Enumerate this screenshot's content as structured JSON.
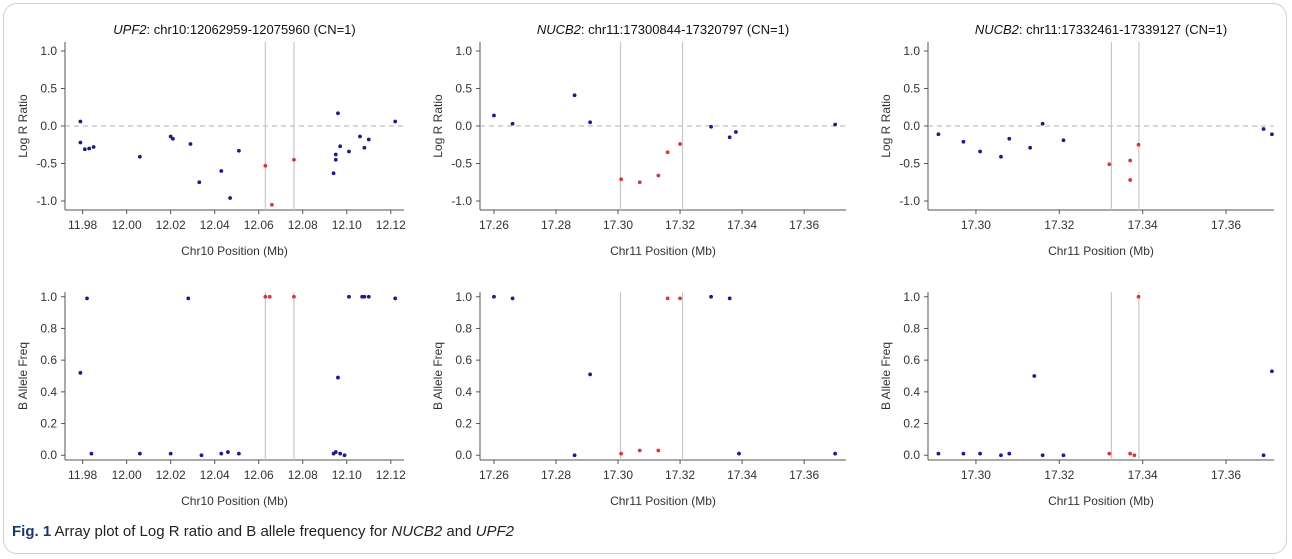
{
  "caption": {
    "label": "Fig. 1",
    "text_1": " Array plot of Log R ratio and B allele frequency for ",
    "gene_1": "NUCB2",
    "text_2": " and ",
    "gene_2": "UPF2"
  },
  "colors": {
    "normal": "#1c1c8c",
    "cnv": "#d43a3a",
    "boundary": "#c8c8c8",
    "baseline": "#b0b0b0",
    "axis": "#555555",
    "text": "#333333"
  },
  "chart_data": [
    {
      "type": "scatter",
      "title_gene": "UPF2",
      "title_rest": ": chr10:12062959-12075960 (CN=1)",
      "xlabel": "Chr10 Position (Mb)",
      "ylabel": "Log R Ratio",
      "xlim": [
        11.972,
        12.126
      ],
      "ylim": [
        -1.12,
        1.12
      ],
      "xticks": [
        "11.98",
        "12.00",
        "12.02",
        "12.04",
        "12.06",
        "12.08",
        "12.10",
        "12.12"
      ],
      "yticks": [
        "1.0",
        "0.5",
        "0.0",
        "-0.5",
        "-1.0"
      ],
      "boundaries": [
        12.063,
        12.076
      ],
      "baseline": 0,
      "series": [
        {
          "status": "normal",
          "points": [
            [
              11.979,
              0.06
            ],
            [
              11.979,
              -0.22
            ],
            [
              11.981,
              -0.31
            ],
            [
              11.983,
              -0.3
            ],
            [
              11.985,
              -0.28
            ],
            [
              12.006,
              -0.41
            ],
            [
              12.02,
              -0.14
            ],
            [
              12.021,
              -0.17
            ],
            [
              12.029,
              -0.24
            ],
            [
              12.033,
              -0.75
            ],
            [
              12.043,
              -0.6
            ],
            [
              12.047,
              -0.96
            ],
            [
              12.051,
              -0.33
            ],
            [
              12.094,
              -0.63
            ],
            [
              12.095,
              -0.45
            ],
            [
              12.095,
              -0.38
            ],
            [
              12.096,
              0.17
            ],
            [
              12.097,
              -0.27
            ],
            [
              12.101,
              -0.34
            ],
            [
              12.106,
              -0.14
            ],
            [
              12.108,
              -0.29
            ],
            [
              12.11,
              -0.18
            ],
            [
              12.122,
              0.06
            ]
          ]
        },
        {
          "status": "cnv",
          "points": [
            [
              12.063,
              -0.53
            ],
            [
              12.066,
              -1.05
            ],
            [
              12.076,
              -0.45
            ]
          ]
        }
      ]
    },
    {
      "type": "scatter",
      "title_gene": "NUCB2",
      "title_rest": ": chr11:17300844-17320797 (CN=1)",
      "xlabel": "Chr11 Position (Mb)",
      "ylabel": "Log R Ratio",
      "xlim": [
        17.2555,
        17.3735
      ],
      "ylim": [
        -1.12,
        1.12
      ],
      "xticks": [
        "17.26",
        "17.28",
        "17.30",
        "17.32",
        "17.34",
        "17.36"
      ],
      "yticks": [
        "1.0",
        "0.5",
        "0.0",
        "-0.5",
        "-1.0"
      ],
      "boundaries": [
        17.3008,
        17.3208
      ],
      "baseline": 0,
      "series": [
        {
          "status": "normal",
          "points": [
            [
              17.26,
              0.14
            ],
            [
              17.266,
              0.03
            ],
            [
              17.286,
              0.41
            ],
            [
              17.291,
              0.05
            ],
            [
              17.33,
              -0.01
            ],
            [
              17.336,
              -0.15
            ],
            [
              17.338,
              -0.08
            ],
            [
              17.37,
              0.02
            ]
          ]
        },
        {
          "status": "cnv",
          "points": [
            [
              17.301,
              -0.71
            ],
            [
              17.307,
              -0.75
            ],
            [
              17.313,
              -0.66
            ],
            [
              17.316,
              -0.35
            ],
            [
              17.32,
              -0.24
            ]
          ]
        }
      ]
    },
    {
      "type": "scatter",
      "title_gene": "NUCB2",
      "title_rest": ": chr11:17332461-17339127 (CN=1)",
      "xlabel": "Chr11 Position (Mb)",
      "ylabel": "Log R Ratio",
      "xlim": [
        17.2885,
        17.3715
      ],
      "ylim": [
        -1.12,
        1.12
      ],
      "xticks": [
        "17.30",
        "17.32",
        "17.34",
        "17.36"
      ],
      "yticks": [
        "1.0",
        "0.5",
        "0.0",
        "-0.5",
        "-1.0"
      ],
      "boundaries": [
        17.3325,
        17.3391
      ],
      "baseline": 0,
      "series": [
        {
          "status": "normal",
          "points": [
            [
              17.291,
              -0.11
            ],
            [
              17.297,
              -0.21
            ],
            [
              17.301,
              -0.34
            ],
            [
              17.306,
              -0.41
            ],
            [
              17.308,
              -0.17
            ],
            [
              17.313,
              -0.29
            ],
            [
              17.316,
              0.03
            ],
            [
              17.321,
              -0.19
            ],
            [
              17.369,
              -0.04
            ],
            [
              17.371,
              -0.11
            ]
          ]
        },
        {
          "status": "cnv",
          "points": [
            [
              17.332,
              -0.51
            ],
            [
              17.337,
              -0.46
            ],
            [
              17.337,
              -0.72
            ],
            [
              17.339,
              -0.25
            ]
          ]
        }
      ]
    },
    {
      "type": "scatter",
      "xlabel": "Chr10 Position (Mb)",
      "ylabel": "B Allele Freq",
      "xlim": [
        11.972,
        12.126
      ],
      "ylim": [
        -0.03,
        1.03
      ],
      "xticks": [
        "11.98",
        "12.00",
        "12.02",
        "12.04",
        "12.06",
        "12.08",
        "12.10",
        "12.12"
      ],
      "yticks": [
        "1.0",
        "0.8",
        "0.6",
        "0.4",
        "0.2",
        "0.0"
      ],
      "boundaries": [
        12.063,
        12.076
      ],
      "series": [
        {
          "status": "normal",
          "points": [
            [
              11.979,
              0.52
            ],
            [
              11.982,
              0.99
            ],
            [
              11.984,
              0.01
            ],
            [
              12.006,
              0.01
            ],
            [
              12.02,
              0.01
            ],
            [
              12.028,
              0.99
            ],
            [
              12.034,
              0.0
            ],
            [
              12.043,
              0.01
            ],
            [
              12.046,
              0.02
            ],
            [
              12.051,
              0.01
            ],
            [
              12.094,
              0.01
            ],
            [
              12.095,
              0.02
            ],
            [
              12.096,
              0.49
            ],
            [
              12.097,
              0.01
            ],
            [
              12.099,
              0.0
            ],
            [
              12.101,
              1.0
            ],
            [
              12.107,
              1.0
            ],
            [
              12.108,
              1.0
            ],
            [
              12.11,
              1.0
            ],
            [
              12.122,
              0.99
            ]
          ]
        },
        {
          "status": "cnv",
          "points": [
            [
              12.063,
              1.0
            ],
            [
              12.065,
              1.0
            ],
            [
              12.076,
              1.0
            ]
          ]
        }
      ]
    },
    {
      "type": "scatter",
      "xlabel": "Chr11 Position (Mb)",
      "ylabel": "B Allele Freq",
      "xlim": [
        17.2555,
        17.3735
      ],
      "ylim": [
        -0.03,
        1.03
      ],
      "xticks": [
        "17.26",
        "17.28",
        "17.30",
        "17.32",
        "17.34",
        "17.36"
      ],
      "yticks": [
        "1.0",
        "0.8",
        "0.6",
        "0.4",
        "0.2",
        "0.0"
      ],
      "boundaries": [
        17.3008,
        17.3208
      ],
      "series": [
        {
          "status": "normal",
          "points": [
            [
              17.26,
              1.0
            ],
            [
              17.266,
              0.99
            ],
            [
              17.286,
              0.0
            ],
            [
              17.291,
              0.51
            ],
            [
              17.33,
              1.0
            ],
            [
              17.336,
              0.99
            ],
            [
              17.339,
              0.01
            ],
            [
              17.37,
              0.01
            ]
          ]
        },
        {
          "status": "cnv",
          "points": [
            [
              17.301,
              0.01
            ],
            [
              17.307,
              0.03
            ],
            [
              17.313,
              0.03
            ],
            [
              17.316,
              0.99
            ],
            [
              17.32,
              0.99
            ]
          ]
        }
      ]
    },
    {
      "type": "scatter",
      "xlabel": "Chr11 Position (Mb)",
      "ylabel": "B Allele Freq",
      "xlim": [
        17.2885,
        17.3715
      ],
      "ylim": [
        -0.03,
        1.03
      ],
      "xticks": [
        "17.30",
        "17.32",
        "17.34",
        "17.36"
      ],
      "yticks": [
        "1.0",
        "0.8",
        "0.6",
        "0.4",
        "0.2",
        "0.0"
      ],
      "boundaries": [
        17.3325,
        17.3391
      ],
      "series": [
        {
          "status": "normal",
          "points": [
            [
              17.291,
              0.01
            ],
            [
              17.297,
              0.01
            ],
            [
              17.301,
              0.01
            ],
            [
              17.306,
              0.0
            ],
            [
              17.308,
              0.01
            ],
            [
              17.314,
              0.5
            ],
            [
              17.316,
              0.0
            ],
            [
              17.321,
              0.0
            ],
            [
              17.369,
              0.0
            ],
            [
              17.371,
              0.53
            ]
          ]
        },
        {
          "status": "cnv",
          "points": [
            [
              17.332,
              0.01
            ],
            [
              17.337,
              0.01
            ],
            [
              17.338,
              0.0
            ],
            [
              17.339,
              1.0
            ]
          ]
        }
      ]
    }
  ]
}
